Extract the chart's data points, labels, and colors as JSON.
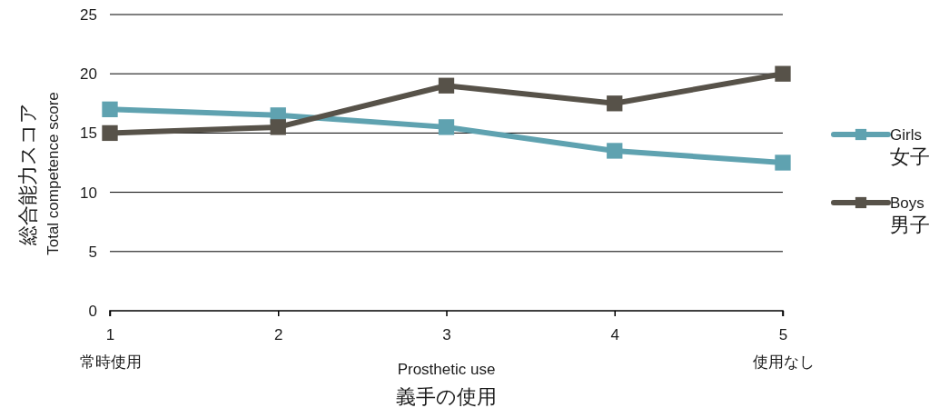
{
  "chart_data": {
    "type": "line",
    "xlabel": "Prosthetic use\n義手の使用",
    "ylabel": "総合能力スコア\nTotal competence score",
    "x": [
      1,
      2,
      3,
      4,
      5
    ],
    "xlim": [
      1,
      5
    ],
    "xticks": [
      {
        "value": 1,
        "label": "1\n常時使用"
      },
      2,
      3,
      4,
      {
        "value": 5,
        "label": "5\n使用なし"
      }
    ],
    "ylim": [
      0,
      25
    ],
    "yticks": [
      0,
      5,
      10,
      15,
      20,
      25
    ],
    "grid": "y",
    "legend": "right",
    "marker": "square",
    "line_style": "solid",
    "series": [
      {
        "name": "Girls\n女子",
        "color": "#5fa2b0",
        "values": [
          17,
          16.5,
          15.5,
          13.5,
          12.5
        ]
      },
      {
        "name": "Boys\n男子",
        "color": "#575249",
        "values": [
          15,
          15.5,
          19,
          17.5,
          20
        ]
      }
    ]
  }
}
